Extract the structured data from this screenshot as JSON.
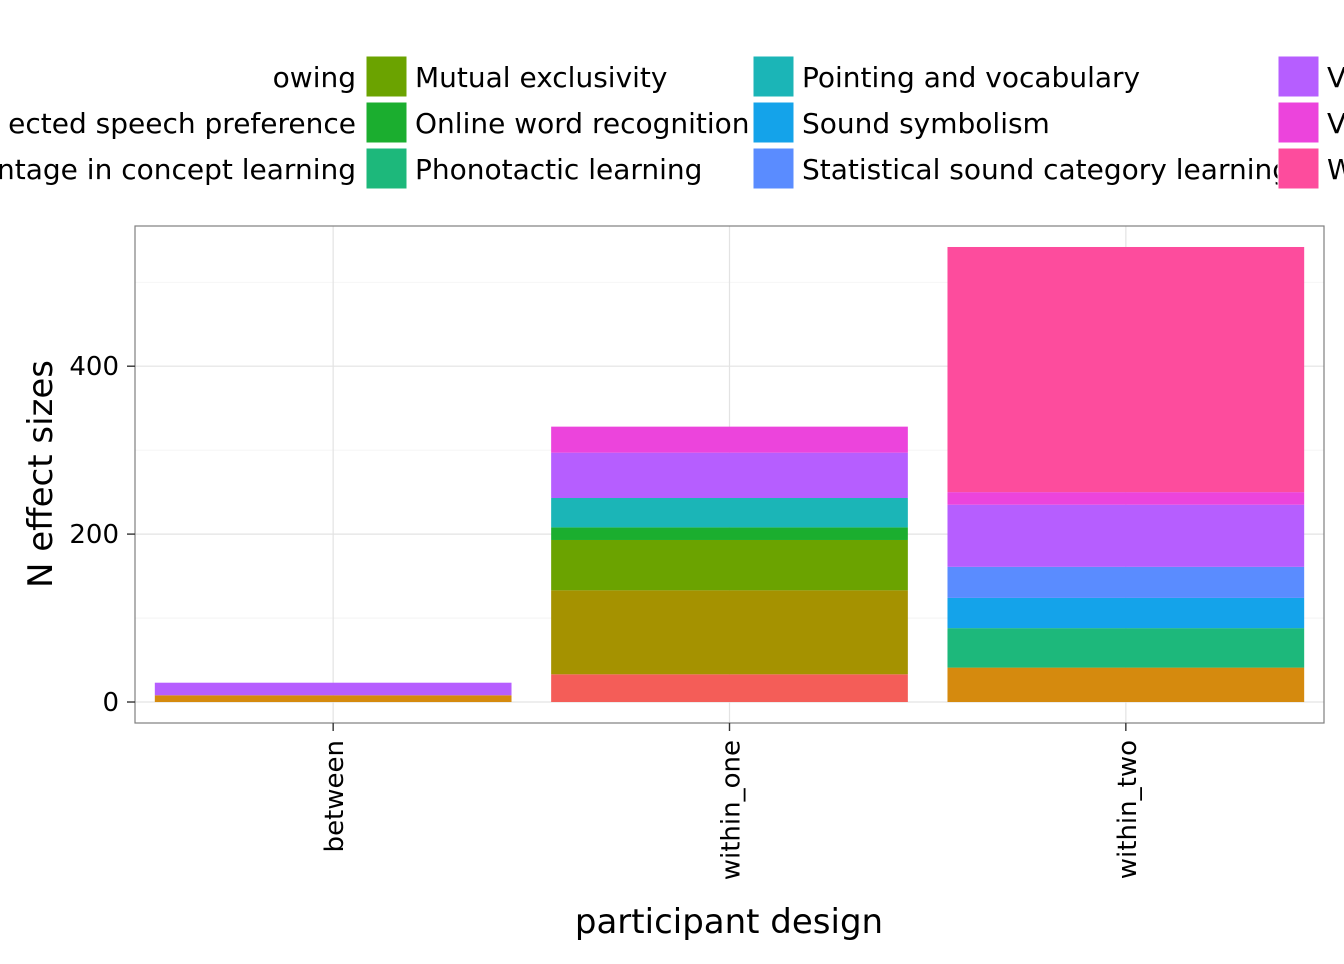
{
  "chart_data": {
    "type": "bar",
    "stacked": true,
    "xlabel": "participant design",
    "ylabel": "N effect sizes",
    "categories": [
      "between",
      "within_one",
      "within_two"
    ],
    "y_ticks": [
      0,
      200,
      400
    ],
    "ylim": [
      -25,
      567
    ],
    "grid": true,
    "legend_position": "top",
    "legend": {
      "columns": [
        [
          {
            "label": "owing",
            "color": "#D58A0E"
          },
          {
            "label": "ected speech preference",
            "color": "#B99E00"
          },
          {
            "label": "antage in concept learning",
            "color": "#A59200"
          }
        ],
        [
          {
            "label": "Mutual exclusivity",
            "color": "#6BA300"
          },
          {
            "label": "Online word recognition",
            "color": "#1BAE2F"
          },
          {
            "label": "Phonotactic learning",
            "color": "#1DB87B"
          }
        ],
        [
          {
            "label": "Pointing and vocabulary",
            "color": "#1BB5B7"
          },
          {
            "label": "Sound symbolism",
            "color": "#14A3EA"
          },
          {
            "label": "Statistical sound category learning",
            "color": "#5A8CFF"
          }
        ],
        [
          {
            "label": "V",
            "color": "#B65EFF"
          },
          {
            "label": "V",
            "color": "#EC44DC"
          },
          {
            "label": "W",
            "color": "#FD4C9D"
          }
        ]
      ]
    },
    "series": [
      {
        "color": "#F45D58",
        "values": [
          0,
          33,
          0
        ]
      },
      {
        "color": "#D58A0E",
        "values": [
          8,
          0,
          41
        ]
      },
      {
        "color": "#A59200",
        "values": [
          0,
          100,
          0
        ]
      },
      {
        "color": "#6BA300",
        "values": [
          0,
          60,
          0
        ]
      },
      {
        "color": "#1BAE2F",
        "values": [
          0,
          15,
          0
        ]
      },
      {
        "color": "#1DB87B",
        "values": [
          0,
          0,
          47
        ]
      },
      {
        "color": "#1BB5B7",
        "values": [
          0,
          35,
          0
        ]
      },
      {
        "color": "#14A3EA",
        "values": [
          0,
          0,
          36
        ]
      },
      {
        "color": "#5A8CFF",
        "values": [
          0,
          0,
          37
        ]
      },
      {
        "color": "#B65EFF",
        "values": [
          15,
          54,
          74
        ]
      },
      {
        "color": "#EC44DC",
        "values": [
          0,
          31,
          15
        ]
      },
      {
        "color": "#FD4C9D",
        "values": [
          0,
          0,
          292
        ]
      }
    ]
  }
}
